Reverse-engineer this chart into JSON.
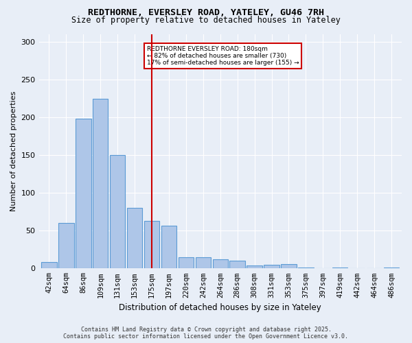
{
  "title": "REDTHORNE, EVERSLEY ROAD, YATELEY, GU46 7RH",
  "subtitle": "Size of property relative to detached houses in Yateley",
  "xlabel": "Distribution of detached houses by size in Yateley",
  "ylabel": "Number of detached properties",
  "categories": [
    "42sqm",
    "64sqm",
    "86sqm",
    "109sqm",
    "131sqm",
    "153sqm",
    "175sqm",
    "197sqm",
    "220sqm",
    "242sqm",
    "264sqm",
    "286sqm",
    "308sqm",
    "331sqm",
    "353sqm",
    "375sqm",
    "397sqm",
    "419sqm",
    "442sqm",
    "464sqm",
    "486sqm"
  ],
  "values": [
    8,
    60,
    198,
    225,
    150,
    80,
    63,
    57,
    15,
    15,
    12,
    10,
    4,
    5,
    6,
    1,
    0,
    1,
    0,
    0,
    1
  ],
  "bar_color": "#aec6e8",
  "bar_edge_color": "#5b9bd5",
  "marker_index": 6,
  "marker_color": "#cc0000",
  "annotation_text": "REDTHORNE EVERSLEY ROAD: 180sqm\n← 82% of detached houses are smaller (730)\n17% of semi-detached houses are larger (155) →",
  "annotation_box_color": "#ffffff",
  "annotation_box_edge": "#cc0000",
  "ylim": [
    0,
    310
  ],
  "yticks": [
    0,
    50,
    100,
    150,
    200,
    250,
    300
  ],
  "background_color": "#e8eef7",
  "grid_color": "#ffffff",
  "footer": "Contains HM Land Registry data © Crown copyright and database right 2025.\nContains public sector information licensed under the Open Government Licence v3.0."
}
